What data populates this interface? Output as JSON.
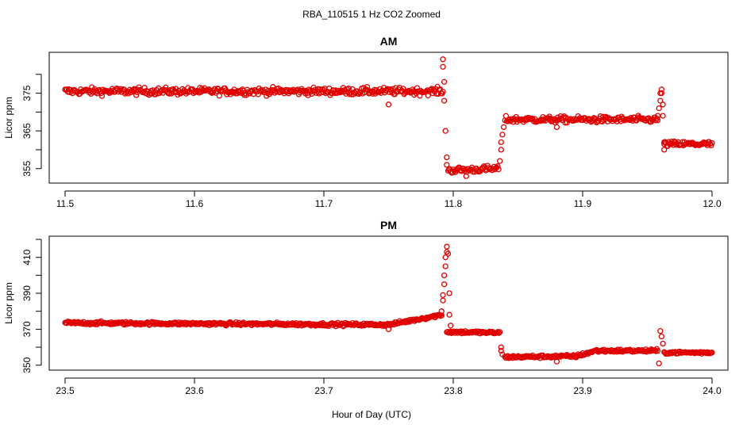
{
  "figure": {
    "title": "RBA_110515  1 Hz CO2 Zoomed",
    "xlabel": "Hour of Day (UTC)"
  },
  "colors": {
    "points": "#e00000",
    "axis": "#000000"
  },
  "chart_data": [
    {
      "type": "scatter",
      "title": "AM",
      "ylabel": "Licor ppm",
      "xlim": [
        11.5,
        12.0
      ],
      "ylim": [
        352,
        385
      ],
      "xticks": [
        "11.5",
        "11.6",
        "11.7",
        "11.8",
        "11.9",
        "12.0"
      ],
      "yticks": [
        "355",
        "365",
        "375"
      ],
      "grid": false,
      "series": [
        {
          "segments": [
            {
              "x": [
                11.5,
                11.792
              ],
              "y": [
                375.5,
                375.5
              ],
              "noise": 0.9
            },
            {
              "x": [
                11.796,
                11.835
              ],
              "y": [
                354.5,
                355.0
              ],
              "noise": 0.8
            },
            {
              "x": [
                11.84,
                11.958
              ],
              "y": [
                368.0,
                368.0
              ],
              "noise": 0.8
            },
            {
              "x": [
                11.963,
                12.0
              ],
              "y": [
                361.5,
                361.5
              ],
              "noise": 0.7
            }
          ],
          "points": [
            [
              11.792,
              384
            ],
            [
              11.792,
              382
            ],
            [
              11.793,
              378
            ],
            [
              11.793,
              373
            ],
            [
              11.794,
              365
            ],
            [
              11.795,
              358
            ],
            [
              11.795,
              356
            ],
            [
              11.836,
              357
            ],
            [
              11.837,
              360
            ],
            [
              11.837,
              362
            ],
            [
              11.838,
              364
            ],
            [
              11.839,
              366
            ],
            [
              11.958,
              369
            ],
            [
              11.959,
              371
            ],
            [
              11.96,
              373
            ],
            [
              11.96,
              375
            ],
            [
              11.961,
              376
            ],
            [
              11.961,
              375
            ],
            [
              11.962,
              372
            ],
            [
              11.962,
              369
            ],
            [
              11.963,
              362
            ],
            [
              11.963,
              360
            ],
            [
              11.75,
              372
            ],
            [
              11.88,
              366
            ],
            [
              11.81,
              353
            ]
          ]
        }
      ]
    },
    {
      "type": "scatter",
      "title": "PM",
      "ylabel": "Licor ppm",
      "xlim": [
        23.5,
        24.0
      ],
      "ylim": [
        349,
        420
      ],
      "xticks": [
        "23.5",
        "23.6",
        "23.7",
        "23.8",
        "23.9",
        "24.0"
      ],
      "yticks": [
        "350",
        "370",
        "390",
        "410"
      ],
      "grid": false,
      "series": [
        {
          "segments": [
            {
              "x": [
                23.5,
                23.75
              ],
              "y": [
                373.5,
                372.5
              ],
              "noise": 0.8
            },
            {
              "x": [
                23.75,
                23.791
              ],
              "y": [
                372.5,
                378.0
              ],
              "noise": 0.8
            },
            {
              "x": [
                23.795,
                23.836
              ],
              "y": [
                368.5,
                368.0
              ],
              "noise": 0.8
            },
            {
              "x": [
                23.84,
                23.895
              ],
              "y": [
                354.5,
                355.0
              ],
              "noise": 0.8
            },
            {
              "x": [
                23.895,
                23.91
              ],
              "y": [
                355.0,
                358.0
              ],
              "noise": 0.8
            },
            {
              "x": [
                23.91,
                23.958
              ],
              "y": [
                358.0,
                358.0
              ],
              "noise": 0.8
            },
            {
              "x": [
                23.963,
                24.0
              ],
              "y": [
                357.0,
                357.0
              ],
              "noise": 0.7
            }
          ],
          "points": [
            [
              23.791,
              380
            ],
            [
              23.792,
              386
            ],
            [
              23.792,
              389
            ],
            [
              23.793,
              395
            ],
            [
              23.793,
              400
            ],
            [
              23.794,
              405
            ],
            [
              23.794,
              410
            ],
            [
              23.795,
              413
            ],
            [
              23.795,
              416
            ],
            [
              23.796,
              412
            ],
            [
              23.797,
              390
            ],
            [
              23.797,
              378
            ],
            [
              23.798,
              372
            ],
            [
              23.837,
              360
            ],
            [
              23.837,
              358
            ],
            [
              23.838,
              356
            ],
            [
              23.96,
              369
            ],
            [
              23.961,
              366
            ],
            [
              23.962,
              362
            ],
            [
              23.959,
              351
            ],
            [
              23.75,
              370
            ],
            [
              23.88,
              352
            ]
          ]
        }
      ]
    }
  ]
}
